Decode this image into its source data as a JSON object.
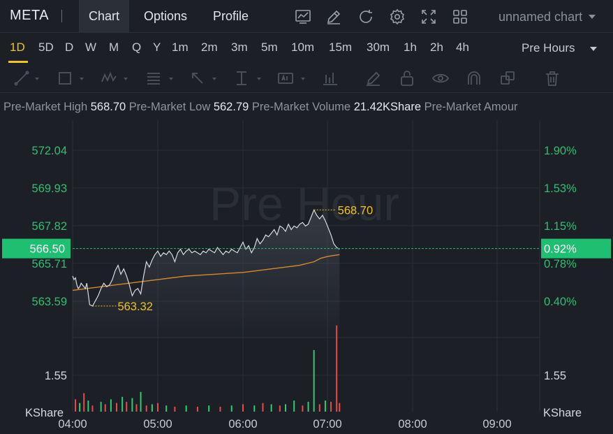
{
  "header": {
    "symbol": "META",
    "tabs": [
      {
        "label": "Chart",
        "active": true
      },
      {
        "label": "Options",
        "active": false
      },
      {
        "label": "Profile",
        "active": false
      }
    ],
    "icons": [
      "indicators-icon",
      "draw-icon",
      "refresh-icon",
      "settings-icon",
      "fullscreen-icon",
      "layout-grid-icon"
    ],
    "chart_name": "unnamed chart"
  },
  "intervals": {
    "items": [
      "1D",
      "5D",
      "D",
      "W",
      "M",
      "Q",
      "Y",
      "1m",
      "2m",
      "3m",
      "5m",
      "10m",
      "15m",
      "30m",
      "1h",
      "2h",
      "4h"
    ],
    "active": "1D",
    "session": "Pre Hours"
  },
  "drawing_tools": [
    "trend-line-icon",
    "rectangle-icon",
    "pattern-icon",
    "fib-icon",
    "arrow-icon",
    "measure-icon",
    "text-icon",
    "bar-pattern-icon",
    "brush-icon",
    "lock-icon",
    "eye-icon",
    "magnet-icon",
    "copy-icon",
    "trash-icon"
  ],
  "info": {
    "high_label": "Pre-Market High",
    "high_value": "568.70",
    "low_label": "Pre-Market Low",
    "low_value": "562.79",
    "volume_label": "Pre-Market Volume",
    "volume_value": "21.42KShare",
    "amount_label": "Pre-Market Amour"
  },
  "chart_data": {
    "type": "line",
    "watermark": "Pre Hour",
    "price_ticks": [
      "572.04",
      "569.93",
      "567.82",
      "565.71",
      "563.59"
    ],
    "pct_ticks": [
      "1.90%",
      "1.53%",
      "1.15%",
      "0.78%",
      "0.40%"
    ],
    "price_values": [
      572.04,
      569.93,
      567.82,
      565.71,
      563.59
    ],
    "current_price": "566.50",
    "current_price_value": 566.5,
    "current_pct": "0.92%",
    "high_marker": "568.70",
    "high_value": 568.7,
    "low_marker": "563.32",
    "low_value": 563.32,
    "volume_tick": "1.55",
    "volume_unit": "KShare",
    "x_ticks": [
      "04:00",
      "05:00",
      "06:00",
      "07:00",
      "08:00",
      "09:00"
    ],
    "colors": {
      "price_line": "#d7dbe2",
      "avg_line": "#d88a2a",
      "up": "#2ecc71",
      "down": "#e74c4c",
      "axis_text": "#2fbf71",
      "marker": "#f0c419",
      "current": "#1fbf72"
    },
    "price_series": [
      [
        0,
        565.0
      ],
      [
        1,
        564.8
      ],
      [
        2,
        564.9
      ],
      [
        3,
        564.5
      ],
      [
        4,
        564.3
      ],
      [
        5,
        564.4
      ],
      [
        6,
        564.6
      ],
      [
        7,
        564.5
      ],
      [
        8,
        564.4
      ],
      [
        9,
        564.3
      ],
      [
        10,
        564.6
      ],
      [
        12,
        563.4
      ],
      [
        14,
        563.32
      ],
      [
        16,
        563.6
      ],
      [
        18,
        563.9
      ],
      [
        20,
        564.3
      ],
      [
        22,
        564.6
      ],
      [
        24,
        564.4
      ],
      [
        26,
        564.5
      ],
      [
        28,
        564.8
      ],
      [
        30,
        565.3
      ],
      [
        32,
        565.6
      ],
      [
        34,
        565.1
      ],
      [
        36,
        565.4
      ],
      [
        38,
        565.0
      ],
      [
        40,
        564.5
      ],
      [
        42,
        563.9
      ],
      [
        44,
        564.2
      ],
      [
        46,
        564.3
      ],
      [
        48,
        564.0
      ],
      [
        50,
        565.0
      ],
      [
        52,
        565.8
      ],
      [
        54,
        565.5
      ],
      [
        56,
        565.9
      ],
      [
        58,
        566.2
      ],
      [
        60,
        566.4
      ],
      [
        62,
        566.1
      ],
      [
        64,
        566.3
      ],
      [
        66,
        566.2
      ],
      [
        68,
        566.4
      ],
      [
        70,
        566.2
      ],
      [
        72,
        565.8
      ],
      [
        74,
        566.3
      ],
      [
        76,
        566.5
      ],
      [
        78,
        566.2
      ],
      [
        80,
        566.4
      ],
      [
        82,
        566.5
      ],
      [
        84,
        566.3
      ],
      [
        86,
        566.4
      ],
      [
        88,
        566.3
      ],
      [
        90,
        566.2
      ],
      [
        92,
        566.4
      ],
      [
        94,
        566.3
      ],
      [
        96,
        566.5
      ],
      [
        98,
        566.4
      ],
      [
        100,
        566.3
      ],
      [
        102,
        566.6
      ],
      [
        104,
        566.4
      ],
      [
        106,
        566.2
      ],
      [
        108,
        566.4
      ],
      [
        110,
        566.3
      ],
      [
        112,
        566.5
      ],
      [
        114,
        566.4
      ],
      [
        116,
        566.3
      ],
      [
        118,
        566.6
      ],
      [
        120,
        566.9
      ],
      [
        122,
        566.5
      ],
      [
        124,
        566.7
      ],
      [
        126,
        566.3
      ],
      [
        128,
        566.6
      ],
      [
        130,
        567.1
      ],
      [
        132,
        566.8
      ],
      [
        134,
        567.0
      ],
      [
        136,
        567.3
      ],
      [
        138,
        567.2
      ],
      [
        140,
        567.4
      ],
      [
        142,
        567.6
      ],
      [
        144,
        567.3
      ],
      [
        146,
        567.8
      ],
      [
        148,
        567.7
      ],
      [
        150,
        567.5
      ],
      [
        152,
        567.9
      ],
      [
        154,
        567.6
      ],
      [
        156,
        567.8
      ],
      [
        158,
        567.7
      ],
      [
        160,
        567.9
      ],
      [
        162,
        568.0
      ],
      [
        164,
        567.8
      ],
      [
        166,
        567.9
      ],
      [
        168,
        568.3
      ],
      [
        170,
        568.7
      ],
      [
        172,
        568.4
      ],
      [
        174,
        568.2
      ],
      [
        176,
        568.4
      ],
      [
        178,
        568.1
      ],
      [
        180,
        567.7
      ],
      [
        182,
        567.3
      ],
      [
        184,
        566.8
      ],
      [
        186,
        566.6
      ],
      [
        188,
        566.5
      ]
    ],
    "avg_series": [
      [
        0,
        564.2
      ],
      [
        10,
        564.3
      ],
      [
        20,
        564.4
      ],
      [
        30,
        564.5
      ],
      [
        40,
        564.6
      ],
      [
        50,
        564.7
      ],
      [
        60,
        564.8
      ],
      [
        70,
        564.9
      ],
      [
        80,
        565.0
      ],
      [
        90,
        565.05
      ],
      [
        100,
        565.1
      ],
      [
        110,
        565.15
      ],
      [
        120,
        565.2
      ],
      [
        130,
        565.3
      ],
      [
        140,
        565.4
      ],
      [
        150,
        565.5
      ],
      [
        160,
        565.6
      ],
      [
        170,
        565.8
      ],
      [
        175,
        566.0
      ],
      [
        180,
        566.1
      ],
      [
        188,
        566.2
      ]
    ],
    "volume_bars": [
      {
        "t": 2,
        "v": 0.2,
        "up": false
      },
      {
        "t": 5,
        "v": 0.14,
        "up": true
      },
      {
        "t": 8,
        "v": 0.3,
        "up": false
      },
      {
        "t": 11,
        "v": 0.18,
        "up": true
      },
      {
        "t": 14,
        "v": 0.1,
        "up": false
      },
      {
        "t": 20,
        "v": 0.16,
        "up": true
      },
      {
        "t": 23,
        "v": 0.12,
        "up": false
      },
      {
        "t": 27,
        "v": 0.2,
        "up": true
      },
      {
        "t": 31,
        "v": 0.14,
        "up": false
      },
      {
        "t": 35,
        "v": 0.24,
        "up": true
      },
      {
        "t": 38,
        "v": 0.16,
        "up": false
      },
      {
        "t": 42,
        "v": 0.22,
        "up": true
      },
      {
        "t": 45,
        "v": 0.12,
        "up": false
      },
      {
        "t": 48,
        "v": 0.32,
        "up": true
      },
      {
        "t": 52,
        "v": 0.1,
        "up": false
      },
      {
        "t": 56,
        "v": 0.12,
        "up": true
      },
      {
        "t": 60,
        "v": 0.14,
        "up": false
      },
      {
        "t": 66,
        "v": 0.1,
        "up": true
      },
      {
        "t": 72,
        "v": 0.08,
        "up": false
      },
      {
        "t": 80,
        "v": 0.1,
        "up": true
      },
      {
        "t": 88,
        "v": 0.08,
        "up": false
      },
      {
        "t": 96,
        "v": 0.1,
        "up": true
      },
      {
        "t": 104,
        "v": 0.08,
        "up": false
      },
      {
        "t": 112,
        "v": 0.1,
        "up": true
      },
      {
        "t": 120,
        "v": 0.12,
        "up": false
      },
      {
        "t": 128,
        "v": 0.1,
        "up": true
      },
      {
        "t": 134,
        "v": 0.14,
        "up": false
      },
      {
        "t": 140,
        "v": 0.12,
        "up": true
      },
      {
        "t": 146,
        "v": 0.1,
        "up": false
      },
      {
        "t": 150,
        "v": 0.12,
        "up": true
      },
      {
        "t": 156,
        "v": 0.18,
        "up": true
      },
      {
        "t": 162,
        "v": 0.1,
        "up": false
      },
      {
        "t": 166,
        "v": 0.16,
        "up": true
      },
      {
        "t": 170,
        "v": 1.0,
        "up": true
      },
      {
        "t": 174,
        "v": 0.12,
        "up": false
      },
      {
        "t": 178,
        "v": 0.18,
        "up": true
      },
      {
        "t": 182,
        "v": 0.16,
        "up": false
      },
      {
        "t": 186,
        "v": 1.4,
        "up": false
      },
      {
        "t": 188,
        "v": 0.14,
        "up": false
      }
    ]
  }
}
